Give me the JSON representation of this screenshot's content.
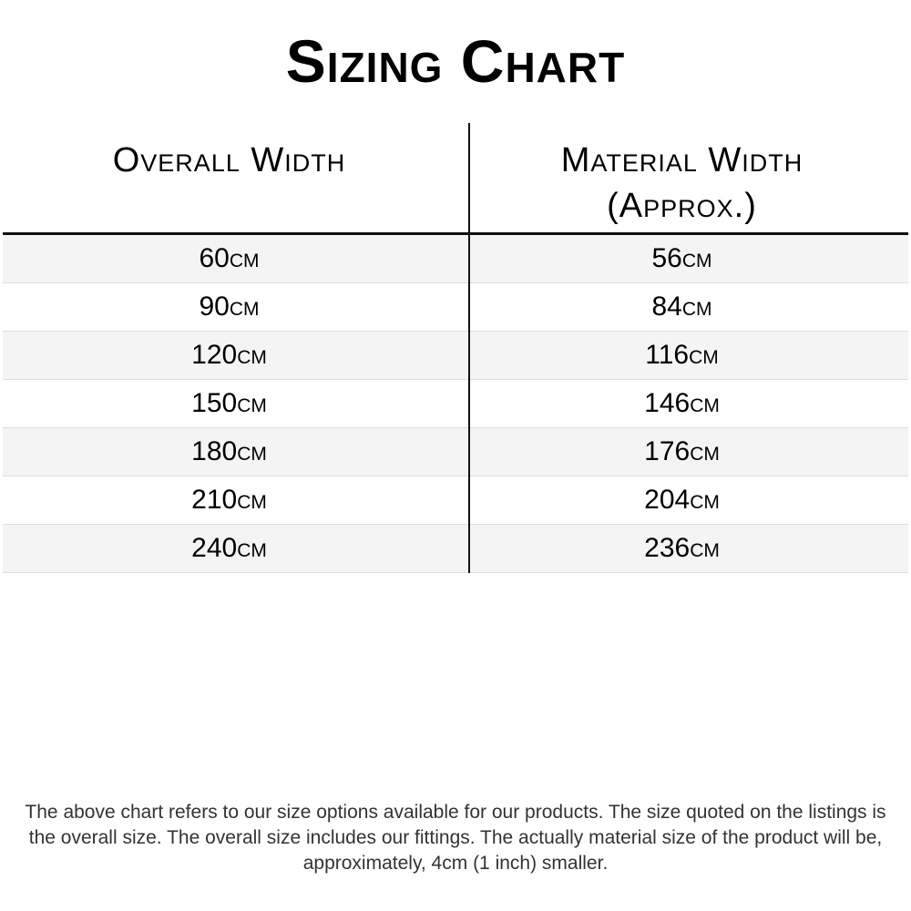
{
  "title": "Sizing Chart",
  "table": {
    "headers": [
      "Overall Width",
      "Material Width (Approx.)"
    ],
    "rows": [
      [
        "60cm",
        "56cm"
      ],
      [
        "90cm",
        "84cm"
      ],
      [
        "120cm",
        "116cm"
      ],
      [
        "150cm",
        "146cm"
      ],
      [
        "180cm",
        "176cm"
      ],
      [
        "210cm",
        "204cm"
      ],
      [
        "240cm",
        "236cm"
      ]
    ]
  },
  "note": "The above chart refers to our size options available for our products. The size quoted on the listings is the overall size. The overall size includes our fittings. The actually material size of the product will be, approximately, 4cm (1 inch) smaller."
}
